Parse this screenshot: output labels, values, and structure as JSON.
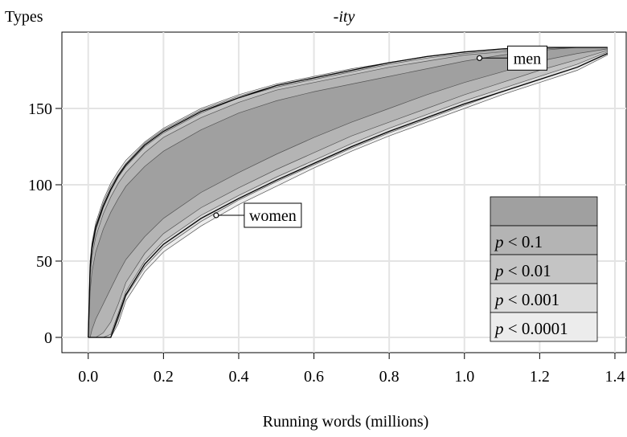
{
  "chart_data": {
    "type": "area",
    "title": "-ity",
    "ylabel": "Types",
    "xlabel": "Running words (millions)",
    "xlim": [
      -0.07,
      1.43
    ],
    "ylim": [
      -10,
      200
    ],
    "xticks": [
      "0.0",
      "0.2",
      "0.4",
      "0.6",
      "0.8",
      "1.0",
      "1.2",
      "1.4"
    ],
    "yticks": [
      "0",
      "50",
      "100",
      "150"
    ],
    "grid": true,
    "x": [
      0,
      0.005,
      0.01,
      0.02,
      0.04,
      0.06,
      0.08,
      0.1,
      0.15,
      0.2,
      0.3,
      0.4,
      0.5,
      0.6,
      0.7,
      0.8,
      0.9,
      1.0,
      1.1,
      1.2,
      1.3,
      1.38
    ],
    "bands": [
      {
        "label": "p < 0.0001",
        "color": "#ececec",
        "upper": [
          0,
          50,
          62,
          75,
          90,
          101,
          109,
          116,
          128,
          137,
          150,
          159,
          166,
          171,
          176,
          180,
          184,
          187,
          189,
          190,
          190,
          190
        ],
        "lower": [
          0,
          0,
          0,
          0,
          0,
          0,
          9,
          24,
          43,
          56,
          73,
          87,
          99,
          111,
          122,
          132,
          141,
          150,
          159,
          167,
          175,
          185
        ]
      },
      {
        "label": "p < 0.001",
        "color": "#dcdcdc",
        "upper": [
          0,
          47,
          60,
          73,
          88,
          99,
          107,
          114,
          127,
          136,
          149,
          158,
          165,
          170,
          175,
          180,
          184,
          187,
          189,
          190,
          190,
          190
        ],
        "lower": [
          0,
          0,
          0,
          0,
          0,
          0,
          12,
          27,
          46,
          59,
          76,
          90,
          102,
          113,
          124,
          134,
          143,
          152,
          161,
          169,
          177,
          186
        ]
      },
      {
        "label": "p < 0.01",
        "color": "#c4c4c4",
        "upper": [
          0,
          44,
          57,
          70,
          85,
          96,
          105,
          112,
          125,
          134,
          147,
          157,
          164,
          169,
          174,
          179,
          183,
          186,
          188,
          190,
          190,
          190
        ],
        "lower": [
          0,
          0,
          0,
          0,
          0,
          2,
          16,
          30,
          50,
          63,
          80,
          93,
          105,
          116,
          127,
          137,
          146,
          155,
          163,
          171,
          179,
          187
        ]
      },
      {
        "label": "p < 0.1",
        "color": "#b4b4b4",
        "upper": [
          0,
          40,
          53,
          66,
          81,
          92,
          101,
          108,
          121,
          131,
          144,
          154,
          162,
          167,
          172,
          177,
          181,
          185,
          187,
          189,
          190,
          190
        ],
        "lower": [
          0,
          0,
          0,
          0,
          3,
          10,
          22,
          36,
          55,
          68,
          85,
          98,
          110,
          121,
          132,
          141,
          150,
          159,
          167,
          175,
          182,
          188
        ]
      },
      {
        "label": "",
        "color": "#a0a0a0",
        "upper": [
          0,
          30,
          43,
          56,
          71,
          82,
          91,
          99,
          112,
          122,
          136,
          147,
          155,
          161,
          166,
          171,
          176,
          181,
          185,
          188,
          190,
          190
        ],
        "lower": [
          0,
          0,
          5,
          12,
          22,
          32,
          42,
          51,
          66,
          78,
          95,
          108,
          120,
          131,
          141,
          150,
          159,
          167,
          174,
          181,
          186,
          189
        ]
      }
    ],
    "series": [
      {
        "name": "men",
        "values": [
          0,
          46,
          59,
          72,
          86,
          97,
          106,
          113,
          126,
          135,
          148,
          157,
          165,
          170,
          175,
          180,
          184,
          187,
          189,
          190,
          190,
          190
        ]
      },
      {
        "name": "women",
        "values": [
          0,
          0,
          0,
          0,
          0,
          0,
          14,
          28,
          48,
          61,
          78,
          91,
          103,
          114,
          125,
          135,
          144,
          153,
          161,
          169,
          177,
          186
        ]
      }
    ],
    "annotations": [
      {
        "label": "men",
        "x": 1.04,
        "y": 183
      },
      {
        "label": "women",
        "x": 0.34,
        "y": 80
      }
    ],
    "legend_position": "bottom-right"
  }
}
